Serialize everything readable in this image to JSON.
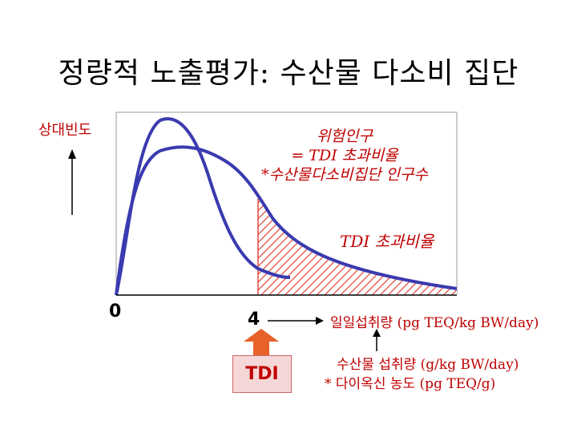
{
  "title": "정량적 노출평가: 수산물 다소비 집단",
  "y_axis_label": "상대빈도",
  "risk_population": {
    "line1": "위험인구",
    "line2": "= TDI 초과비율",
    "line3": "*수산물다소비집단 인구수"
  },
  "tdi_exceed_label": "TDI 초과비율",
  "x_origin_label": "0",
  "x_tdi_value": "4",
  "tdi_box_label": "TDI",
  "daily_intake_label": "일일섭취량 (pg TEQ/kg BW/day)",
  "fish_intake_line1": "수산물 섭취량 (g/kg BW/day)",
  "fish_intake_line2": "* 다이옥신 농도 (pg TEQ/g)",
  "colors": {
    "curve": "#3a3ab0",
    "accent": "#c00000",
    "hatch": "#e04a3a",
    "tdi_box_fill": "#f5d7d7",
    "tdi_arrow": "#e8602a"
  }
}
